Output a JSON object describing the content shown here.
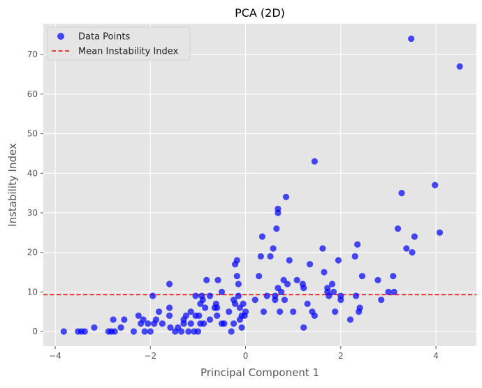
{
  "chart_data": {
    "type": "scatter",
    "title": "PCA (2D)",
    "xlabel": "Principal Component 1",
    "ylabel": "Instability Index",
    "xlim": [
      -4.25,
      4.85
    ],
    "ylim": [
      -3.7,
      77.8
    ],
    "xticks": [
      -4,
      -2,
      0,
      2,
      4
    ],
    "xtick_labels": [
      "−4",
      "−2",
      "0",
      "2",
      "4"
    ],
    "yticks": [
      0,
      10,
      20,
      30,
      40,
      50,
      60,
      70
    ],
    "yticks_labels": [
      "0",
      "10",
      "20",
      "30",
      "40",
      "50",
      "60",
      "70"
    ],
    "grid": true,
    "legend_position": "top-left",
    "mean_line": {
      "label": "Mean Instability Index",
      "y": 9.3,
      "color": "#ff0000",
      "style": "dashed"
    },
    "series": [
      {
        "name": "Data Points",
        "color": "#0000ff",
        "points": [
          [
            -3.82,
            0
          ],
          [
            -3.52,
            0
          ],
          [
            -3.45,
            0
          ],
          [
            -3.38,
            0
          ],
          [
            -3.18,
            1
          ],
          [
            -2.88,
            0
          ],
          [
            -2.82,
            0
          ],
          [
            -2.78,
            3
          ],
          [
            -2.75,
            0
          ],
          [
            -2.55,
            3
          ],
          [
            -2.62,
            1
          ],
          [
            -2.35,
            0
          ],
          [
            -2.25,
            4
          ],
          [
            -2.2,
            2
          ],
          [
            -2.15,
            3
          ],
          [
            -2.12,
            0
          ],
          [
            -2.05,
            2
          ],
          [
            -2.0,
            0
          ],
          [
            -1.95,
            9
          ],
          [
            -1.92,
            2
          ],
          [
            -1.88,
            3
          ],
          [
            -1.82,
            5
          ],
          [
            -1.75,
            2
          ],
          [
            -1.6,
            12
          ],
          [
            -1.6,
            6
          ],
          [
            -1.6,
            4
          ],
          [
            -1.58,
            1
          ],
          [
            -1.48,
            0
          ],
          [
            -1.42,
            1
          ],
          [
            -1.35,
            0
          ],
          [
            -1.3,
            2
          ],
          [
            -1.3,
            3
          ],
          [
            -1.25,
            4
          ],
          [
            -1.2,
            0
          ],
          [
            -1.15,
            2
          ],
          [
            -1.15,
            5
          ],
          [
            -1.08,
            0
          ],
          [
            -1.05,
            4
          ],
          [
            -1.05,
            9
          ],
          [
            -1.0,
            0
          ],
          [
            -0.95,
            2
          ],
          [
            -0.98,
            4
          ],
          [
            -0.95,
            7
          ],
          [
            -0.92,
            9
          ],
          [
            -0.9,
            8
          ],
          [
            -0.88,
            2
          ],
          [
            -0.85,
            6
          ],
          [
            -0.82,
            13
          ],
          [
            -0.75,
            3
          ],
          [
            -0.75,
            9
          ],
          [
            -0.65,
            6
          ],
          [
            -0.62,
            7
          ],
          [
            -0.6,
            4
          ],
          [
            -0.6,
            6
          ],
          [
            -0.58,
            13
          ],
          [
            -0.5,
            10
          ],
          [
            -0.5,
            2
          ],
          [
            -0.45,
            2
          ],
          [
            -0.35,
            5
          ],
          [
            -0.3,
            0
          ],
          [
            -0.25,
            2
          ],
          [
            -0.25,
            8
          ],
          [
            -0.22,
            7
          ],
          [
            -0.22,
            17
          ],
          [
            -0.18,
            18
          ],
          [
            -0.18,
            14
          ],
          [
            -0.15,
            12
          ],
          [
            -0.15,
            9
          ],
          [
            -0.12,
            3
          ],
          [
            -0.12,
            6
          ],
          [
            -0.08,
            4
          ],
          [
            -0.08,
            1
          ],
          [
            -0.05,
            7
          ],
          [
            -0.02,
            4
          ],
          [
            0.0,
            5
          ],
          [
            0.2,
            8
          ],
          [
            0.28,
            14
          ],
          [
            0.32,
            19
          ],
          [
            0.35,
            24
          ],
          [
            0.38,
            5
          ],
          [
            0.45,
            9
          ],
          [
            0.52,
            19
          ],
          [
            0.58,
            21
          ],
          [
            0.62,
            8
          ],
          [
            0.62,
            9
          ],
          [
            0.65,
            26
          ],
          [
            0.68,
            31
          ],
          [
            0.68,
            30
          ],
          [
            0.68,
            11
          ],
          [
            0.72,
            5
          ],
          [
            0.75,
            10
          ],
          [
            0.8,
            13
          ],
          [
            0.82,
            8
          ],
          [
            0.85,
            34
          ],
          [
            0.88,
            12
          ],
          [
            0.92,
            18
          ],
          [
            1.0,
            5
          ],
          [
            1.08,
            13
          ],
          [
            1.2,
            12
          ],
          [
            1.22,
            11
          ],
          [
            1.22,
            1
          ],
          [
            1.3,
            7
          ],
          [
            1.35,
            17
          ],
          [
            1.4,
            5
          ],
          [
            1.45,
            4
          ],
          [
            1.45,
            43
          ],
          [
            1.62,
            21
          ],
          [
            1.65,
            15
          ],
          [
            1.72,
            11
          ],
          [
            1.72,
            10
          ],
          [
            1.75,
            9
          ],
          [
            1.82,
            12
          ],
          [
            1.85,
            10
          ],
          [
            1.88,
            5
          ],
          [
            1.95,
            18
          ],
          [
            2.0,
            9
          ],
          [
            2.0,
            8
          ],
          [
            2.2,
            3
          ],
          [
            2.3,
            19
          ],
          [
            2.32,
            9
          ],
          [
            2.35,
            22
          ],
          [
            2.38,
            5
          ],
          [
            2.4,
            6
          ],
          [
            2.45,
            14
          ],
          [
            2.78,
            13
          ],
          [
            2.85,
            8
          ],
          [
            3.0,
            10
          ],
          [
            3.1,
            14
          ],
          [
            3.12,
            10
          ],
          [
            3.2,
            26
          ],
          [
            3.28,
            35
          ],
          [
            3.38,
            21
          ],
          [
            3.48,
            74
          ],
          [
            3.5,
            20
          ],
          [
            3.55,
            24
          ],
          [
            3.98,
            37
          ],
          [
            4.08,
            25
          ],
          [
            4.5,
            67
          ]
        ]
      }
    ]
  }
}
